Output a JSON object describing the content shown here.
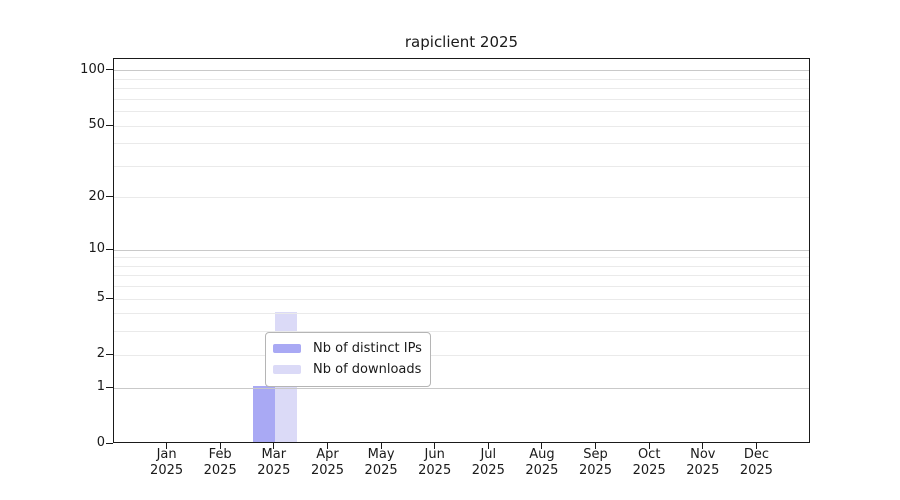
{
  "chart_data": {
    "type": "bar",
    "title": "rapiclient 2025",
    "categories": [
      "Jan",
      "Feb",
      "Mar",
      "Apr",
      "May",
      "Jun",
      "Jul",
      "Aug",
      "Sep",
      "Oct",
      "Nov",
      "Dec"
    ],
    "year_label": "2025",
    "series": [
      {
        "name": "Nb of distinct IPs",
        "color": "#a9a9f4",
        "values": [
          0,
          0,
          1,
          0,
          0,
          0,
          0,
          0,
          0,
          0,
          0,
          0
        ]
      },
      {
        "name": "Nb of downloads",
        "color": "#dbdaf7",
        "values": [
          0,
          0,
          4,
          0,
          0,
          0,
          0,
          0,
          0,
          0,
          0,
          0
        ]
      }
    ],
    "xlabel": "",
    "ylabel": "",
    "yticks": [
      0,
      1,
      2,
      5,
      10,
      20,
      50,
      100
    ],
    "gridlines": {
      "major": [
        1,
        10,
        100
      ],
      "minor": [
        2,
        3,
        4,
        5,
        6,
        7,
        8,
        9,
        20,
        30,
        40,
        50,
        60,
        70,
        80,
        90
      ]
    },
    "scale": "log1p",
    "ylim": [
      0,
      116
    ],
    "grid": "horizontal",
    "legend": {
      "position": "bottom-center"
    },
    "colors": {
      "axis": "#1a1a1a",
      "grid_major": "#c9c9c9",
      "grid_minor": "#eaeaea",
      "background": "#ffffff"
    }
  }
}
